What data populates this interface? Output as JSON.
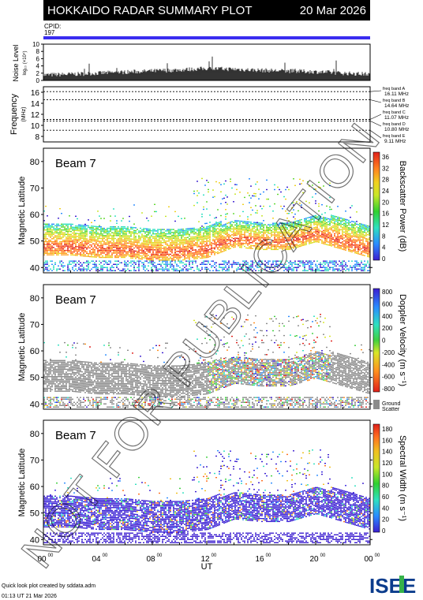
{
  "header": {
    "title": "HOKKAIDO RADAR SUMMARY PLOT",
    "date": "20 Mar 2026",
    "cpid_label": "CPID:",
    "cpid_value": "197"
  },
  "watermark": "NOT FOR PUBLICATION",
  "noise_panel": {
    "ylabel": "Noise Level",
    "ylabel_sub": "log₁₀ (×10⁴)",
    "ticks": [
      "0",
      "2",
      "4",
      "6",
      "8",
      "10"
    ]
  },
  "freq_panel": {
    "ylabel": "Frequency",
    "ylabel_unit": "(MHz)",
    "ticks": [
      "8",
      "10",
      "12",
      "14",
      "16"
    ],
    "bands": [
      {
        "label": "freq band A",
        "value": "16.11 MHz"
      },
      {
        "label": "freq band B",
        "value": "14.64 MHz"
      },
      {
        "label": "freq band C",
        "value": "11.07 MHz"
      },
      {
        "label": "freq band D",
        "value": "10.80 MHz"
      },
      {
        "label": "freq band E",
        "value": "9.11 MHz"
      }
    ]
  },
  "beam_panels": [
    {
      "beam": "Beam  7",
      "ylabel": "Magnetic Latitude",
      "lat_ticks": [
        "40",
        "50",
        "60",
        "70",
        "80"
      ],
      "cbar_label": "Backscatter Power (dB)",
      "cbar_ticks": [
        "0",
        "4",
        "8",
        "12",
        "16",
        "20",
        "24",
        "28",
        "32",
        "36"
      ]
    },
    {
      "beam": "Beam  7",
      "ylabel": "Magnetic Latitude",
      "lat_ticks": [
        "40",
        "50",
        "60",
        "70",
        "80"
      ],
      "cbar_label": "Doppler Velocity (m s⁻¹)",
      "cbar_ticks": [
        "800",
        "600",
        "400",
        "200",
        "0",
        "-200",
        "-400",
        "-600",
        "-800"
      ],
      "gs_label": "Ground",
      "gs_label2": "Scatter"
    },
    {
      "beam": "Beam  7",
      "ylabel": "Magnetic Latitude",
      "lat_ticks": [
        "40",
        "50",
        "60",
        "70",
        "80"
      ],
      "cbar_label": "Spectral Width (m s⁻¹)",
      "cbar_ticks": [
        "0",
        "20",
        "40",
        "60",
        "80",
        "100",
        "120",
        "140",
        "160",
        "180"
      ]
    }
  ],
  "xaxis": {
    "ticks": [
      "00",
      "04",
      "08",
      "12",
      "16",
      "20",
      "00"
    ],
    "tick_sup": "00",
    "label": "UT"
  },
  "footer": {
    "line1": "Quick look plot created by sddata.adm",
    "line2": "01:13 UT 21 Mar 2026",
    "logo": "ISEE"
  },
  "chart_data": [
    {
      "type": "line",
      "name": "noise",
      "ylim": [
        0,
        10
      ],
      "x_hours": [
        0,
        24
      ],
      "x": [
        0,
        2,
        4,
        6,
        8,
        10,
        12,
        14,
        16,
        18,
        20,
        22,
        24
      ],
      "values": [
        1.5,
        1.7,
        2.0,
        2.3,
        2.6,
        2.9,
        3.3,
        3.1,
        2.8,
        2.6,
        2.4,
        2.0,
        1.7
      ]
    },
    {
      "type": "line",
      "name": "frequency",
      "ylim": [
        7,
        17
      ],
      "band_lines": [
        16.11,
        14.64,
        11.07,
        10.8,
        9.11
      ]
    },
    {
      "type": "heatmap",
      "name": "power",
      "ylim": [
        38,
        85
      ],
      "xlim": [
        0,
        24
      ],
      "zlim": [
        0,
        36
      ],
      "main_band_lat": [
        48,
        48,
        47,
        47,
        46,
        46,
        47,
        51,
        50,
        50,
        53,
        50,
        47
      ],
      "main_band_x": [
        0,
        2,
        4,
        6,
        8,
        10,
        12,
        14,
        16,
        18,
        20,
        22,
        24
      ]
    },
    {
      "type": "heatmap",
      "name": "velocity",
      "ylim": [
        38,
        85
      ],
      "xlim": [
        0,
        24
      ],
      "zlim": [
        -800,
        800
      ]
    },
    {
      "type": "heatmap",
      "name": "width",
      "ylim": [
        38,
        85
      ],
      "xlim": [
        0,
        24
      ],
      "zlim": [
        0,
        180
      ]
    }
  ],
  "colors": {
    "header_bg": "#000000",
    "header_fg": "#ffffff",
    "cpid_bar": "#3a2cf0",
    "ground_scatter": "#8c8c8c"
  }
}
